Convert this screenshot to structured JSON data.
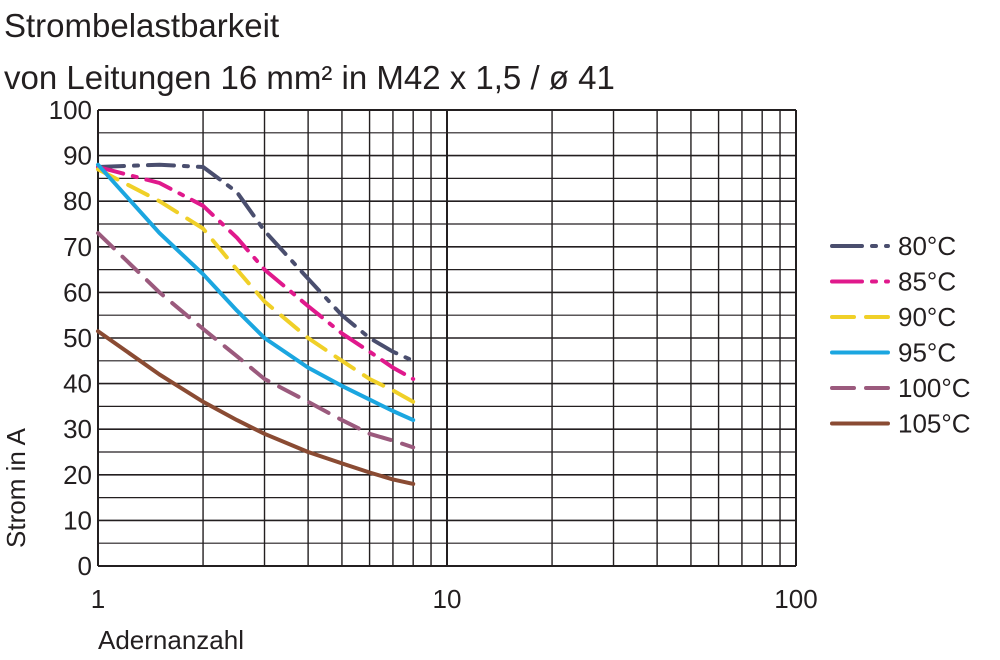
{
  "chart_data": {
    "type": "line",
    "title": "Strombelastbarkeit",
    "subtitle": "von Leitungen 16 mm² in M42 x 1,5 / ø 41",
    "xlabel": "Adernanzahl",
    "ylabel": "Strom in A",
    "x_scale": "log",
    "xlim": [
      1,
      100
    ],
    "ylim": [
      0,
      100
    ],
    "x_ticks": [
      "1",
      "10",
      "100"
    ],
    "y_ticks": [
      "0",
      "10",
      "20",
      "30",
      "40",
      "50",
      "60",
      "70",
      "80",
      "90",
      "100"
    ],
    "grid": true,
    "legend_position": "right",
    "series": [
      {
        "name": "80°C",
        "color": "#4a4e6e",
        "style": "dash-dot",
        "x": [
          1,
          1.5,
          2,
          2.5,
          3,
          4,
          5,
          6,
          7,
          8
        ],
        "y": [
          87.5,
          88,
          87.5,
          82,
          73.5,
          63,
          55,
          50,
          47,
          45
        ]
      },
      {
        "name": "85°C",
        "color": "#e0198c",
        "style": "dash-dot",
        "x": [
          1,
          1.5,
          2,
          2.5,
          3,
          4,
          5,
          6,
          7,
          8
        ],
        "y": [
          87.5,
          84,
          79,
          72,
          65,
          57,
          51,
          47,
          43.5,
          41
        ]
      },
      {
        "name": "90°C",
        "color": "#f0d028",
        "style": "dash",
        "x": [
          1,
          1.5,
          2,
          2.5,
          3,
          4,
          5,
          6,
          7,
          8
        ],
        "y": [
          87,
          80,
          74,
          65,
          58,
          50,
          45,
          41,
          38.5,
          36
        ]
      },
      {
        "name": "95°C",
        "color": "#1ba6e0",
        "style": "solid",
        "x": [
          1,
          1.5,
          2,
          2.5,
          3,
          4,
          5,
          6,
          7,
          8
        ],
        "y": [
          88,
          73,
          64,
          56,
          50,
          43.5,
          39.5,
          36.5,
          34,
          32
        ]
      },
      {
        "name": "100°C",
        "color": "#9b5a7d",
        "style": "dash",
        "x": [
          1,
          1.5,
          2,
          2.5,
          3,
          4,
          5,
          6,
          7,
          8
        ],
        "y": [
          73,
          60,
          52,
          46,
          41,
          36,
          32,
          29,
          27.5,
          26
        ]
      },
      {
        "name": "105°C",
        "color": "#8a4b33",
        "style": "solid",
        "x": [
          1,
          1.5,
          2,
          2.5,
          3,
          4,
          5,
          6,
          7,
          8
        ],
        "y": [
          51.5,
          42,
          36,
          32,
          29,
          25,
          22.5,
          20.5,
          19,
          18
        ]
      }
    ]
  }
}
